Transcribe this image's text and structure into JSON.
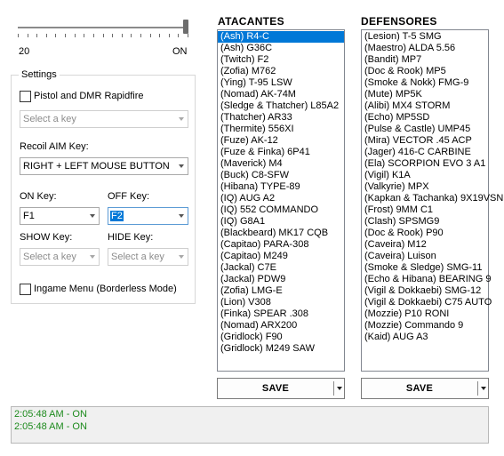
{
  "slider": {
    "min_label": "20",
    "max_label": "ON",
    "value_fraction": 1.0
  },
  "settings": {
    "title": "Settings",
    "pistol_dmr": {
      "label": "Pistol and DMR Rapidfire",
      "checked": false,
      "key_placeholder": "Select a key"
    },
    "recoil": {
      "label": "Recoil AIM Key:",
      "value": "RIGHT + LEFT MOUSE BUTTON"
    },
    "on_key": {
      "label": "ON Key:",
      "value": "F1"
    },
    "off_key": {
      "label": "OFF Key:",
      "value": "F2"
    },
    "show_key": {
      "label": "SHOW Key:",
      "placeholder": "Select a key"
    },
    "hide_key": {
      "label": "HIDE Key:",
      "placeholder": "Select a key"
    },
    "ingame_menu": {
      "label": "Ingame Menu (Borderless Mode)",
      "checked": false
    }
  },
  "attackers": {
    "title": "ATACANTES",
    "selected_index": 0,
    "items": [
      "(Ash) R4-C",
      "(Ash) G36C",
      "(Twitch) F2",
      "(Zofia) M762",
      "(Ying) T-95 LSW",
      "(Nomad) AK-74M",
      "(Sledge & Thatcher) L85A2",
      "(Thatcher) AR33",
      "(Thermite) 556XI",
      "(Fuze) AK-12",
      "(Fuze & Finka) 6P41",
      "(Maverick) M4",
      "(Buck) C8-SFW",
      "(Hibana) TYPE-89",
      "(IQ) AUG A2",
      "(IQ) 552 COMMANDO",
      "(IQ) G8A1",
      "(Blackbeard) MK17 CQB",
      "(Capitao) PARA-308",
      "(Capitao) M249",
      "(Jackal) C7E",
      "(Jackal) PDW9",
      "(Zofia) LMG-E",
      "(Lion) V308",
      "(Finka) SPEAR .308",
      "(Nomad) ARX200",
      "(Gridlock) F90",
      "(Gridlock) M249 SAW"
    ],
    "save_label": "SAVE"
  },
  "defenders": {
    "title": "DEFENSORES",
    "items": [
      "(Lesion) T-5 SMG",
      "(Maestro) ALDA 5.56",
      "(Bandit) MP7",
      "(Doc & Rook) MP5",
      "(Smoke & Nokk) FMG-9",
      "(Mute) MP5K",
      "(Alibi) MX4 STORM",
      "(Echo) MP5SD",
      "(Pulse & Castle) UMP45",
      "(Mira) VECTOR .45 ACP",
      "(Jager) 416-C CARBINE",
      "(Ela) SCORPION EVO 3 A1",
      "(Vigil) K1A",
      "(Valkyrie) MPX",
      "(Kapkan & Tachanka) 9X19VSN",
      "(Frost) 9MM C1",
      "(Clash) SPSMG9",
      "(Doc & Rook) P90",
      "(Caveira) M12",
      "(Caveira) Luison",
      "(Smoke & Sledge) SMG-11",
      "(Echo & Hibana) BEARING 9",
      "(Vigil & Dokkaebi) SMG-12",
      "(Vigil & Dokkaebi) C75 AUTO",
      "(Mozzie) P10 RONI",
      "(Mozzie) Commando 9",
      "(Kaid) AUG A3"
    ],
    "save_label": "SAVE"
  },
  "log": {
    "lines": [
      "2:05:48 AM - ON",
      "2:05:48 AM - ON"
    ],
    "color": "#1c8a1c"
  },
  "colors": {
    "selection": "#0078d7"
  }
}
